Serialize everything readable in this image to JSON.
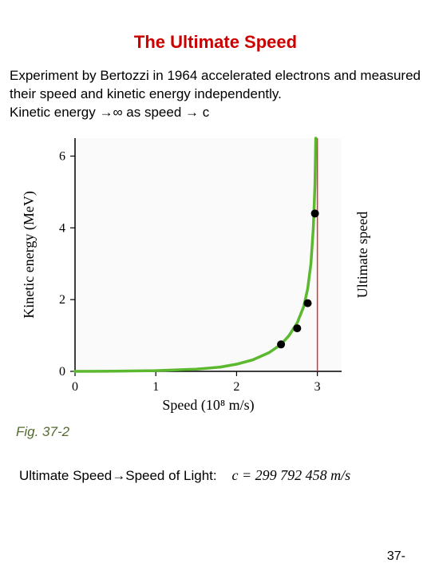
{
  "title": "The Ultimate Speed",
  "description_lines": [
    "Experiment by Bertozzi in 1964 accelerated electrons and measured their speed and kinetic energy independently.",
    "Kinetic energy →∞ as speed → c"
  ],
  "fig_label": "Fig. 37-2",
  "bottom_text": "Ultimate Speed→Speed of Light:",
  "formula": "c = 299 792 458 m/s",
  "page_number": "37-",
  "chart": {
    "type": "line-with-points",
    "xlabel": "Speed (10⁸ m/s)",
    "ylabel": "Kinetic energy (MeV)",
    "rlabel": "Ultimate speed",
    "xlim": [
      0,
      3.3
    ],
    "ylim": [
      0,
      6.5
    ],
    "xticks": [
      0,
      1,
      2,
      3
    ],
    "yticks": [
      0,
      2,
      4,
      6
    ],
    "label_fontsize": 18,
    "tick_fontsize": 16,
    "label_font": "Times New Roman, serif",
    "curve_color": "#5cb82e",
    "curve_width": 3.5,
    "asymptote_x": 3.0,
    "asymptote_color": "#e03030",
    "asymptote_width": 1.5,
    "point_color": "#000000",
    "point_radius": 5,
    "axis_color": "#000000",
    "tick_color": "#000000",
    "background_color": "#fafafa",
    "curve_points": [
      [
        0,
        0
      ],
      [
        0.5,
        0.005
      ],
      [
        1.0,
        0.02
      ],
      [
        1.5,
        0.06
      ],
      [
        1.8,
        0.12
      ],
      [
        2.0,
        0.2
      ],
      [
        2.2,
        0.32
      ],
      [
        2.4,
        0.52
      ],
      [
        2.55,
        0.75
      ],
      [
        2.65,
        1.0
      ],
      [
        2.75,
        1.35
      ],
      [
        2.83,
        1.8
      ],
      [
        2.88,
        2.3
      ],
      [
        2.92,
        3.0
      ],
      [
        2.95,
        4.0
      ],
      [
        2.97,
        5.2
      ],
      [
        2.98,
        6.5
      ]
    ],
    "data_points": [
      [
        2.55,
        0.75
      ],
      [
        2.75,
        1.2
      ],
      [
        2.88,
        1.9
      ],
      [
        2.97,
        4.4
      ]
    ]
  }
}
